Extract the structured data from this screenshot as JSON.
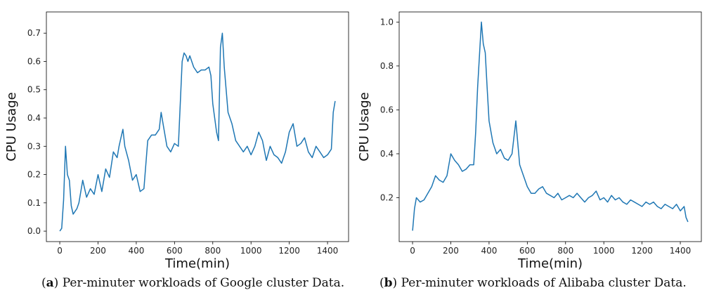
{
  "chart_data": [
    {
      "type": "line",
      "caption_label": "a",
      "caption_text": "Per-minuter workloads of Google cluster Data.",
      "xlabel": "Time(min)",
      "ylabel": "CPU Usage",
      "xlim": [
        -70,
        1510
      ],
      "ylim": [
        -0.037,
        0.775
      ],
      "xticks": [
        0,
        200,
        400,
        600,
        800,
        1000,
        1200,
        1400
      ],
      "yticks": [
        0.0,
        0.1,
        0.2,
        0.3,
        0.4,
        0.5,
        0.6,
        0.7
      ],
      "ytick_labels": [
        "0.0",
        "0.1",
        "0.2",
        "0.3",
        "0.4",
        "0.5",
        "0.6",
        "0.7"
      ],
      "color": "#1f77b4",
      "x": [
        0,
        10,
        20,
        30,
        40,
        50,
        60,
        70,
        80,
        90,
        100,
        120,
        140,
        160,
        180,
        200,
        220,
        240,
        260,
        280,
        300,
        310,
        320,
        330,
        340,
        360,
        380,
        400,
        420,
        440,
        460,
        480,
        500,
        520,
        530,
        540,
        560,
        580,
        600,
        620,
        640,
        650,
        660,
        670,
        680,
        700,
        720,
        740,
        760,
        780,
        790,
        800,
        810,
        820,
        830,
        840,
        850,
        860,
        880,
        900,
        920,
        940,
        960,
        980,
        1000,
        1020,
        1040,
        1060,
        1080,
        1100,
        1120,
        1140,
        1160,
        1180,
        1200,
        1220,
        1240,
        1260,
        1280,
        1300,
        1320,
        1340,
        1360,
        1380,
        1400,
        1420,
        1430,
        1440
      ],
      "y": [
        0.0,
        0.01,
        0.11,
        0.3,
        0.2,
        0.18,
        0.09,
        0.06,
        0.07,
        0.08,
        0.1,
        0.18,
        0.12,
        0.15,
        0.13,
        0.2,
        0.14,
        0.22,
        0.19,
        0.28,
        0.26,
        0.3,
        0.33,
        0.36,
        0.3,
        0.25,
        0.18,
        0.2,
        0.14,
        0.15,
        0.32,
        0.34,
        0.34,
        0.36,
        0.42,
        0.38,
        0.3,
        0.28,
        0.31,
        0.3,
        0.6,
        0.63,
        0.62,
        0.6,
        0.62,
        0.58,
        0.56,
        0.57,
        0.57,
        0.58,
        0.55,
        0.45,
        0.4,
        0.35,
        0.32,
        0.65,
        0.7,
        0.58,
        0.42,
        0.38,
        0.32,
        0.3,
        0.28,
        0.3,
        0.27,
        0.3,
        0.35,
        0.32,
        0.25,
        0.3,
        0.27,
        0.26,
        0.24,
        0.28,
        0.35,
        0.38,
        0.3,
        0.31,
        0.33,
        0.28,
        0.26,
        0.3,
        0.28,
        0.26,
        0.27,
        0.29,
        0.42,
        0.46
      ]
    },
    {
      "type": "line",
      "caption_label": "b",
      "caption_text": "Per-minuter workloads of Alibaba cluster Data.",
      "xlabel": "Time(min)",
      "ylabel": "CPU Usage",
      "xlim": [
        -70,
        1510
      ],
      "ylim": [
        0.0,
        1.046
      ],
      "xticks": [
        0,
        200,
        400,
        600,
        800,
        1000,
        1200,
        1400
      ],
      "yticks": [
        0.2,
        0.4,
        0.6,
        0.8,
        1.0
      ],
      "ytick_labels": [
        "0.2",
        "0.4",
        "0.6",
        "0.8",
        "1.0"
      ],
      "color": "#1f77b4",
      "x": [
        0,
        10,
        20,
        40,
        60,
        80,
        100,
        120,
        140,
        160,
        180,
        200,
        220,
        240,
        260,
        280,
        300,
        320,
        330,
        340,
        350,
        360,
        370,
        380,
        390,
        400,
        420,
        440,
        460,
        480,
        500,
        520,
        540,
        560,
        580,
        600,
        620,
        640,
        660,
        680,
        700,
        720,
        740,
        760,
        780,
        800,
        820,
        840,
        860,
        880,
        900,
        920,
        940,
        960,
        980,
        1000,
        1020,
        1040,
        1060,
        1080,
        1100,
        1120,
        1140,
        1160,
        1180,
        1200,
        1220,
        1240,
        1260,
        1280,
        1300,
        1320,
        1340,
        1360,
        1380,
        1400,
        1420,
        1430,
        1440
      ],
      "y": [
        0.05,
        0.15,
        0.2,
        0.18,
        0.19,
        0.22,
        0.25,
        0.3,
        0.28,
        0.27,
        0.3,
        0.4,
        0.37,
        0.35,
        0.32,
        0.33,
        0.35,
        0.35,
        0.5,
        0.7,
        0.85,
        1.0,
        0.9,
        0.86,
        0.7,
        0.55,
        0.45,
        0.4,
        0.42,
        0.38,
        0.37,
        0.4,
        0.55,
        0.35,
        0.3,
        0.25,
        0.22,
        0.22,
        0.24,
        0.25,
        0.22,
        0.21,
        0.2,
        0.22,
        0.19,
        0.2,
        0.21,
        0.2,
        0.22,
        0.2,
        0.18,
        0.2,
        0.21,
        0.23,
        0.19,
        0.2,
        0.18,
        0.21,
        0.19,
        0.2,
        0.18,
        0.17,
        0.19,
        0.18,
        0.17,
        0.16,
        0.18,
        0.17,
        0.18,
        0.16,
        0.15,
        0.17,
        0.16,
        0.15,
        0.17,
        0.14,
        0.16,
        0.11,
        0.09
      ]
    }
  ]
}
